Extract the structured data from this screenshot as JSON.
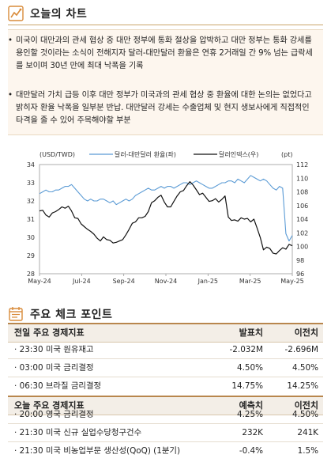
{
  "section1": {
    "title": "오늘의 차트",
    "icon": "line-chart-icon"
  },
  "bullets": [
    {
      "dot": "•",
      "text": "미국이 대만과의 관세 협상 중 대만 정부에 통화 절상을 압박하고 대만 정부는 통화 강세를 용인할 것이라는 소식이 전해지자 달러-대만달러 환율은 연휴 2거래일 간 9% 넘는 급락세를 보이며 30년 만에 최대 낙폭을 기록"
    },
    {
      "dot": "•",
      "text": "대만달러 가치 급등 이후 대만 정부가 미국과의 관세 협상 중 환율에 대한 논의는 없었다고 밝히자 환율 낙폭을 일부분 반납. 대만달러 강세는 수출업체 및 현지 생보사에게 직접적인 타격을 줄 수 있어 주목해야할 부분"
    }
  ],
  "chart_data": {
    "type": "line",
    "left_unit": "(USD/TWD)",
    "right_unit": "(pt)",
    "x_ticks": [
      "May-24",
      "Jul-24",
      "Sep-24",
      "Nov-24",
      "Jan-25",
      "Mar-25",
      "May-25"
    ],
    "y_left": {
      "min": 28,
      "max": 34,
      "ticks": [
        28,
        29,
        30,
        31,
        32,
        33,
        34
      ]
    },
    "y_right": {
      "min": 96,
      "max": 112,
      "ticks": [
        96,
        98,
        100,
        102,
        104,
        106,
        108,
        110,
        112
      ]
    },
    "series": [
      {
        "name": "달러-대만달러 환율(좌)",
        "axis": "left",
        "color": "#5b9bd5",
        "values": [
          32.4,
          32.5,
          32.6,
          32.5,
          32.5,
          32.6,
          32.6,
          32.7,
          32.8,
          32.8,
          32.9,
          32.7,
          32.5,
          32.3,
          32.1,
          32.0,
          32.1,
          32.0,
          32.0,
          32.1,
          32.1,
          32.0,
          31.9,
          32.0,
          31.8,
          31.9,
          32.0,
          32.1,
          32.0,
          32.1,
          32.3,
          32.4,
          32.5,
          32.6,
          32.7,
          32.6,
          32.6,
          32.7,
          32.8,
          32.7,
          32.8,
          32.8,
          32.7,
          32.8,
          32.9,
          33.0,
          33.0,
          32.9,
          33.0,
          33.1,
          33.0,
          32.9,
          32.8,
          32.7,
          32.7,
          32.8,
          32.9,
          33.0,
          33.0,
          33.1,
          33.1,
          33.0,
          33.2,
          33.1,
          33.0,
          33.2,
          33.4,
          33.3,
          33.2,
          33.1,
          33.2,
          33.1,
          32.9,
          32.7,
          32.6,
          32.8,
          32.7,
          30.2,
          29.8,
          30.1
        ]
      },
      {
        "name": "달러인덱스(우)",
        "axis": "right",
        "color": "#111111",
        "values": [
          105.2,
          105.3,
          104.6,
          104.3,
          104.9,
          105.1,
          105.4,
          105.8,
          105.6,
          105.9,
          105.2,
          104.2,
          104.1,
          103.3,
          102.9,
          102.5,
          102.2,
          101.8,
          101.2,
          100.8,
          101.4,
          101.0,
          100.9,
          100.5,
          100.6,
          100.8,
          101.0,
          101.7,
          102.5,
          103.4,
          103.6,
          104.2,
          104.2,
          104.4,
          105.1,
          106.4,
          106.7,
          107.2,
          107.5,
          106.5,
          105.8,
          105.8,
          106.6,
          107.4,
          108.0,
          108.2,
          108.9,
          109.5,
          109.0,
          108.3,
          107.6,
          107.8,
          107.2,
          106.6,
          106.7,
          107.0,
          106.5,
          106.9,
          107.4,
          104.3,
          103.8,
          103.9,
          103.7,
          104.2,
          104.0,
          104.1,
          103.6,
          104.0,
          102.7,
          101.3,
          99.5,
          99.9,
          99.7,
          99.0,
          98.9,
          99.4,
          99.8,
          99.6,
          100.3,
          100.1
        ]
      }
    ]
  },
  "section2": {
    "title": "주요 체크 포인트",
    "icon": "calendar-icon"
  },
  "table1": {
    "headers": [
      "전일 주요 경제지표",
      "발표치",
      "이전치"
    ],
    "rows": [
      [
        "· 23:30 미국 원유재고",
        "-2.032M",
        "-2.696M"
      ],
      [
        "· 03:00 미국 금리결정",
        "4.50%",
        "4.50%"
      ],
      [
        "· 06:30 브라질 금리결정",
        "14.75%",
        "14.25%"
      ]
    ]
  },
  "table2": {
    "headers": [
      "오늘 주요 경제지표",
      "예측치",
      "이전치"
    ],
    "rows": [
      [
        "· 20:00 영국 금리결정",
        "4.25%",
        "4.50%"
      ],
      [
        "· 21:30 미국 신규 실업수당청구건수",
        "232K",
        "241K"
      ],
      [
        "· 21:30 미국 비농업부문 생산성(QoQ) (1분기)",
        "-0.4%",
        "1.5%"
      ]
    ]
  }
}
